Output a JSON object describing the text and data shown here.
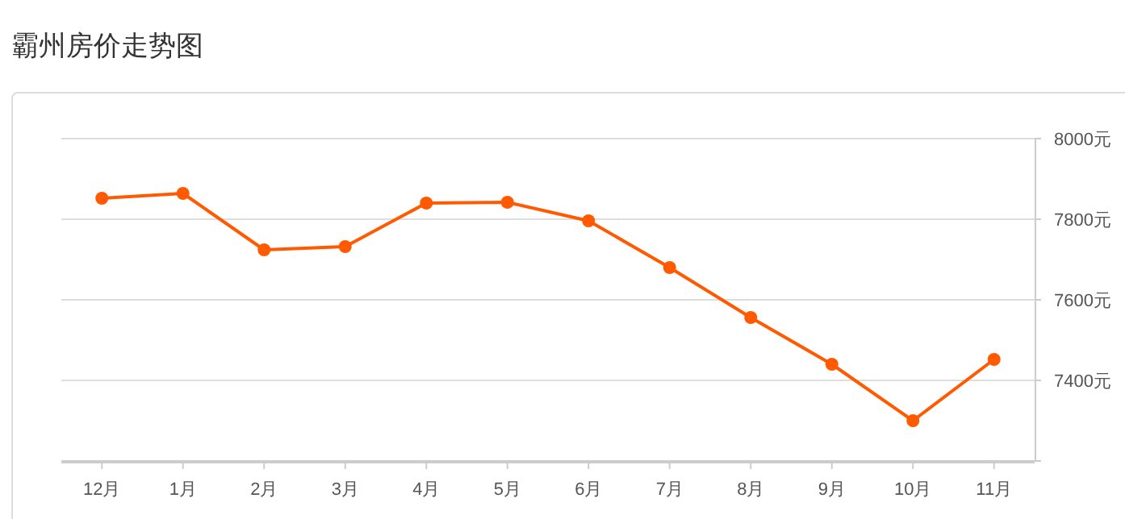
{
  "chart_data": {
    "type": "line",
    "title": "霸州房价走势图",
    "categories": [
      "12月",
      "1月",
      "2月",
      "3月",
      "4月",
      "5月",
      "6月",
      "7月",
      "8月",
      "9月",
      "10月",
      "11月"
    ],
    "series": [
      {
        "color": "#ff5a00",
        "values": [
          7852,
          7864,
          7724,
          7732,
          7840,
          7842,
          7796,
          7680,
          7556,
          7440,
          7300,
          7452
        ]
      }
    ],
    "ylim": [
      7200,
      8000
    ],
    "yticks": [
      {
        "value": 7200,
        "label": null
      },
      {
        "value": 7400,
        "label": "7400元"
      },
      {
        "value": 7600,
        "label": "7600元"
      },
      {
        "value": 7800,
        "label": "7800元"
      },
      {
        "value": 8000,
        "label": "8000元"
      }
    ],
    "grid": "y",
    "marker": "circle",
    "line_style": "solid"
  }
}
